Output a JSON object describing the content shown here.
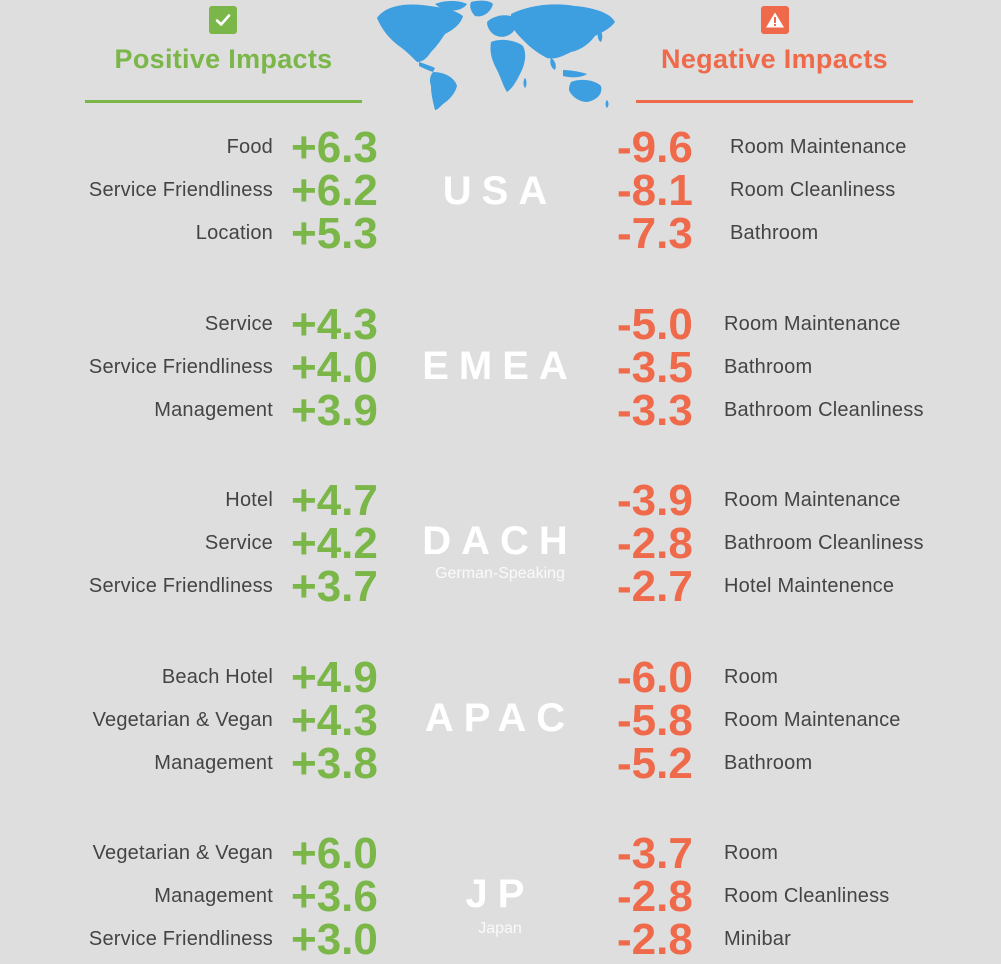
{
  "header": {
    "positive_title": "Positive Impacts",
    "negative_title": "Negative Impacts",
    "positive_icon": "check-icon",
    "negative_icon": "warning-icon",
    "map_icon": "world-map-icon"
  },
  "colors": {
    "positive": "#7ab648",
    "negative": "#ef6a4a",
    "background": "#dedede",
    "map": "#3d9ee0"
  },
  "regions": [
    {
      "code": "USA",
      "subtitle": "",
      "positive": [
        {
          "label": "Food",
          "value": "+6.3"
        },
        {
          "label": "Service Friendliness",
          "value": "+6.2"
        },
        {
          "label": "Location",
          "value": "+5.3"
        }
      ],
      "negative": [
        {
          "label": "Room Maintenance",
          "value": "-9.6"
        },
        {
          "label": "Room Cleanliness",
          "value": "-8.1"
        },
        {
          "label": "Bathroom",
          "value": "-7.3"
        }
      ]
    },
    {
      "code": "EMEA",
      "subtitle": "",
      "positive": [
        {
          "label": "Service",
          "value": "+4.3"
        },
        {
          "label": "Service Friendliness",
          "value": "+4.0"
        },
        {
          "label": "Management",
          "value": "+3.9"
        }
      ],
      "negative": [
        {
          "label": "Room Maintenance",
          "value": "-5.0"
        },
        {
          "label": "Bathroom",
          "value": "-3.5"
        },
        {
          "label": "Bathroom Cleanliness",
          "value": "-3.3"
        }
      ]
    },
    {
      "code": "DACH",
      "subtitle": "German-Speaking",
      "positive": [
        {
          "label": "Hotel",
          "value": "+4.7"
        },
        {
          "label": "Service",
          "value": "+4.2"
        },
        {
          "label": "Service Friendliness",
          "value": "+3.7"
        }
      ],
      "negative": [
        {
          "label": "Room Maintenance",
          "value": "-3.9"
        },
        {
          "label": "Bathroom Cleanliness",
          "value": "-2.8"
        },
        {
          "label": "Hotel Maintenence",
          "value": "-2.7"
        }
      ]
    },
    {
      "code": "APAC",
      "subtitle": "",
      "positive": [
        {
          "label": "Beach Hotel",
          "value": "+4.9"
        },
        {
          "label": "Vegetarian & Vegan",
          "value": "+4.3"
        },
        {
          "label": "Management",
          "value": "+3.8"
        }
      ],
      "negative": [
        {
          "label": "Room",
          "value": "-6.0"
        },
        {
          "label": "Room Maintenance",
          "value": "-5.8"
        },
        {
          "label": "Bathroom",
          "value": "-5.2"
        }
      ]
    },
    {
      "code": "JP",
      "subtitle": "Japan",
      "positive": [
        {
          "label": "Vegetarian & Vegan",
          "value": "+6.0"
        },
        {
          "label": "Management",
          "value": "+3.6"
        },
        {
          "label": "Service Friendliness",
          "value": "+3.0"
        }
      ],
      "negative": [
        {
          "label": "Room",
          "value": "-3.7"
        },
        {
          "label": "Room Cleanliness",
          "value": "-2.8"
        },
        {
          "label": "Minibar",
          "value": "-2.8"
        }
      ]
    }
  ]
}
